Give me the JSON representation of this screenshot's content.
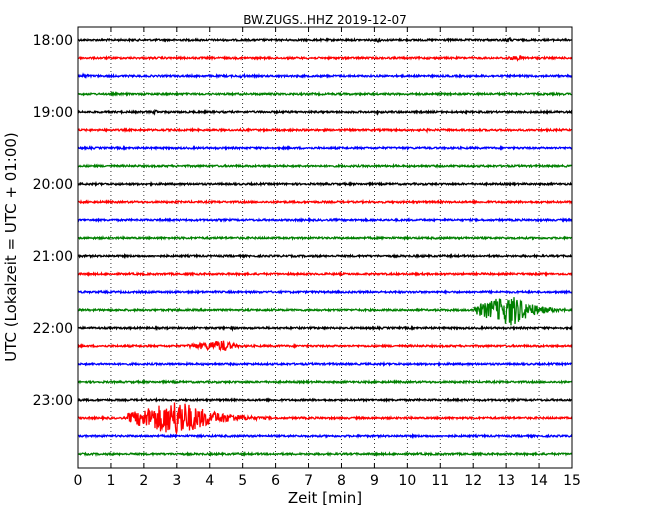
{
  "chart_data": {
    "type": "line",
    "title": "BW.ZUGS..HHZ 2019-12-07",
    "xlabel": "Zeit  [min]",
    "ylabel": "UTC (Lokalzeit = UTC + 01:00)",
    "xlim": [
      0,
      15
    ],
    "x_ticks": [
      "0",
      "1",
      "2",
      "3",
      "4",
      "5",
      "6",
      "7",
      "8",
      "9",
      "10",
      "11",
      "12",
      "13",
      "14",
      "15"
    ],
    "y_tick_labels": [
      "18:00",
      "19:00",
      "20:00",
      "21:00",
      "22:00",
      "23:00"
    ],
    "trace_colors": [
      "#000000",
      "#ff0000",
      "#0000ff",
      "#008000"
    ],
    "grid": "vertical dotted lines at each minute",
    "traces": [
      {
        "start": "18:00",
        "events": [
          {
            "start_min": 9.0,
            "end_min": 9.3,
            "peak_min": 9.15,
            "amplitude": 0.25
          },
          {
            "start_min": 12.8,
            "end_min": 13.4,
            "peak_min": 13.1,
            "amplitude": 0.2
          }
        ]
      },
      {
        "start": "18:15",
        "events": [
          {
            "start_min": 12.8,
            "end_min": 14.6,
            "peak_min": 13.4,
            "amplitude": 0.18
          }
        ]
      },
      {
        "start": "18:30",
        "events": [
          {
            "start_min": 0.0,
            "end_min": 0.8,
            "peak_min": 0.2,
            "amplitude": 0.18
          },
          {
            "start_min": 4.8,
            "end_min": 5.4,
            "peak_min": 5.0,
            "amplitude": 0.15
          }
        ]
      },
      {
        "start": "18:45",
        "events": []
      },
      {
        "start": "19:00",
        "events": [
          {
            "start_min": 2.2,
            "end_min": 2.6,
            "peak_min": 2.4,
            "amplitude": 0.18
          },
          {
            "start_min": 9.0,
            "end_min": 9.3,
            "peak_min": 9.1,
            "amplitude": 0.15
          }
        ]
      },
      {
        "start": "19:15",
        "events": [
          {
            "start_min": 10.4,
            "end_min": 10.9,
            "peak_min": 10.6,
            "amplitude": 0.12
          }
        ]
      },
      {
        "start": "19:30",
        "events": []
      },
      {
        "start": "19:45",
        "events": []
      },
      {
        "start": "20:00",
        "events": [
          {
            "start_min": 7.2,
            "end_min": 7.8,
            "peak_min": 7.5,
            "amplitude": 0.1
          }
        ]
      },
      {
        "start": "20:15",
        "events": [
          {
            "start_min": 12.2,
            "end_min": 13.0,
            "peak_min": 12.5,
            "amplitude": 0.1
          }
        ]
      },
      {
        "start": "20:30",
        "events": [
          {
            "start_min": 11.0,
            "end_min": 11.6,
            "peak_min": 11.3,
            "amplitude": 0.08
          }
        ]
      },
      {
        "start": "20:45",
        "events": []
      },
      {
        "start": "21:00",
        "events": []
      },
      {
        "start": "21:15",
        "events": []
      },
      {
        "start": "21:30",
        "events": [
          {
            "start_min": 12.0,
            "end_min": 13.0,
            "peak_min": 12.5,
            "amplitude": 0.08
          }
        ]
      },
      {
        "start": "21:45",
        "events": [
          {
            "start_min": 12.0,
            "end_min": 15.0,
            "peak_min": 13.2,
            "amplitude": 1.25
          }
        ]
      },
      {
        "start": "22:00",
        "events": [
          {
            "start_min": 4.5,
            "end_min": 4.9,
            "peak_min": 4.7,
            "amplitude": 0.15
          }
        ]
      },
      {
        "start": "22:15",
        "events": [
          {
            "start_min": 3.3,
            "end_min": 5.4,
            "peak_min": 4.45,
            "amplitude": 0.45
          }
        ]
      },
      {
        "start": "22:30",
        "events": []
      },
      {
        "start": "22:45",
        "events": []
      },
      {
        "start": "23:00",
        "events": []
      },
      {
        "start": "23:15",
        "events": [
          {
            "start_min": 1.5,
            "end_min": 6.0,
            "peak_min": 3.1,
            "amplitude": 1.45
          }
        ]
      },
      {
        "start": "23:30",
        "events": [
          {
            "start_min": 12.7,
            "end_min": 13.0,
            "peak_min": 12.85,
            "amplitude": 0.08
          }
        ]
      },
      {
        "start": "23:45",
        "events": []
      }
    ]
  }
}
